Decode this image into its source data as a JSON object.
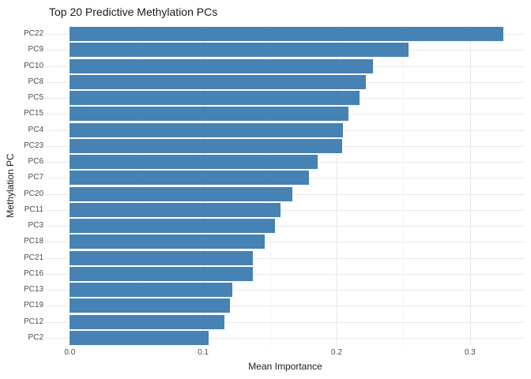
{
  "title": "Top 20 Predictive Methylation PCs",
  "chart_data": {
    "type": "bar",
    "orientation": "horizontal",
    "title": "Top 20 Predictive Methylation PCs",
    "xlabel": "Mean Importance",
    "ylabel": "Methylation PC",
    "categories": [
      "PC22",
      "PC9",
      "PC10",
      "PC8",
      "PC5",
      "PC15",
      "PC4",
      "PC23",
      "PC6",
      "PC7",
      "PC20",
      "PC11",
      "PC3",
      "PC18",
      "PC21",
      "PC16",
      "PC13",
      "PC19",
      "PC12",
      "PC2"
    ],
    "values": [
      0.325,
      0.254,
      0.227,
      0.222,
      0.217,
      0.209,
      0.205,
      0.204,
      0.186,
      0.179,
      0.167,
      0.158,
      0.154,
      0.146,
      0.137,
      0.137,
      0.122,
      0.12,
      0.116,
      0.104
    ],
    "xlim": [
      -0.018,
      0.341
    ],
    "x_major_ticks": [
      0.0,
      0.1,
      0.2,
      0.3
    ],
    "x_tick_labels": [
      "0.0",
      "0.1",
      "0.2",
      "0.3"
    ],
    "x_minor_ticks": [
      0.05,
      0.15,
      0.25,
      0.35
    ],
    "grid": true,
    "legend": false,
    "colors": {
      "bar": "#4682B4",
      "grid_major": "#e8e8e8",
      "grid_minor": "#f2f2f2",
      "axis_text": "#4d4d4d",
      "title_text": "#1a1a1a",
      "background": "#ffffff"
    }
  }
}
